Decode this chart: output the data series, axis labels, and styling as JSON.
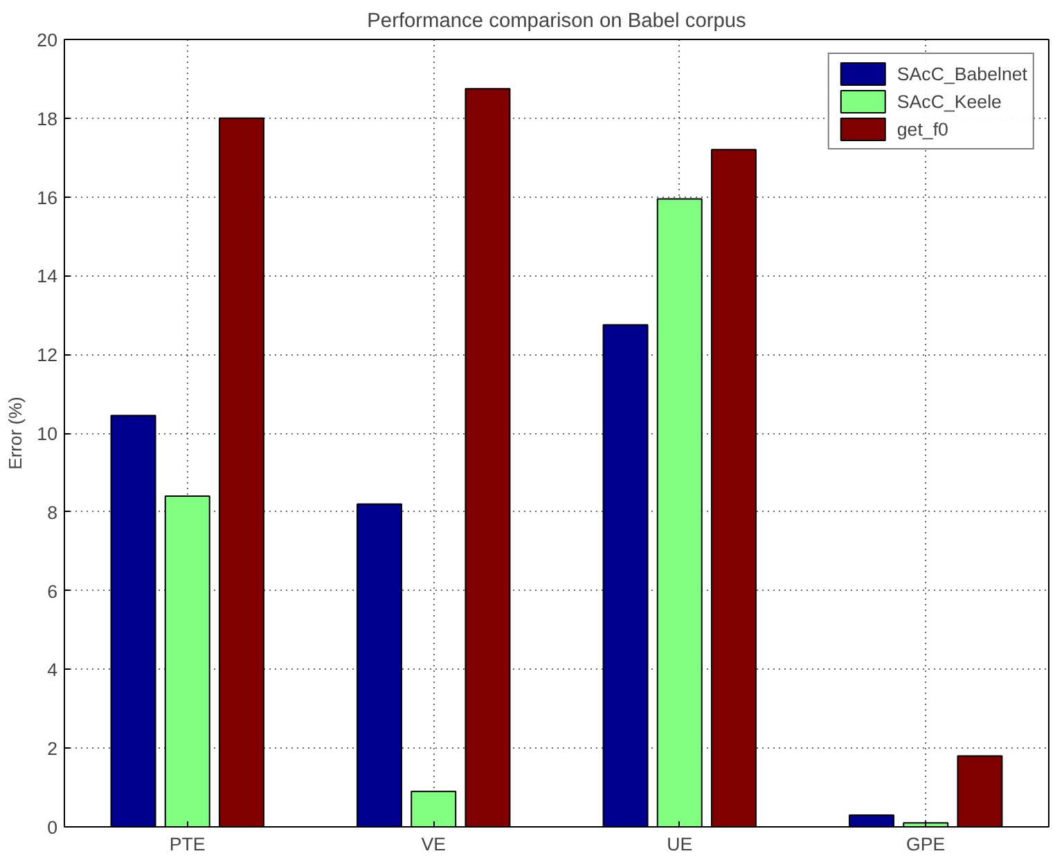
{
  "chart_data": {
    "type": "bar",
    "title": "Performance comparison on Babel corpus",
    "ylabel": "Error (%)",
    "categories": [
      "PTE",
      "VE",
      "UE",
      "GPE"
    ],
    "series": [
      {
        "name": "SAcC_Babelnet",
        "color": "#00008f",
        "values": [
          10.45,
          8.2,
          12.75,
          0.3
        ]
      },
      {
        "name": "SAcC_Keele",
        "color": "#80ff80",
        "values": [
          8.4,
          0.9,
          15.95,
          0.1
        ]
      },
      {
        "name": "get_f0",
        "color": "#800000",
        "values": [
          18.0,
          18.75,
          17.2,
          1.8
        ]
      }
    ],
    "ylim": [
      0,
      20
    ],
    "yticks": [
      0,
      2,
      4,
      6,
      8,
      10,
      12,
      14,
      16,
      18,
      20
    ],
    "grid": true,
    "legend": "top right"
  }
}
